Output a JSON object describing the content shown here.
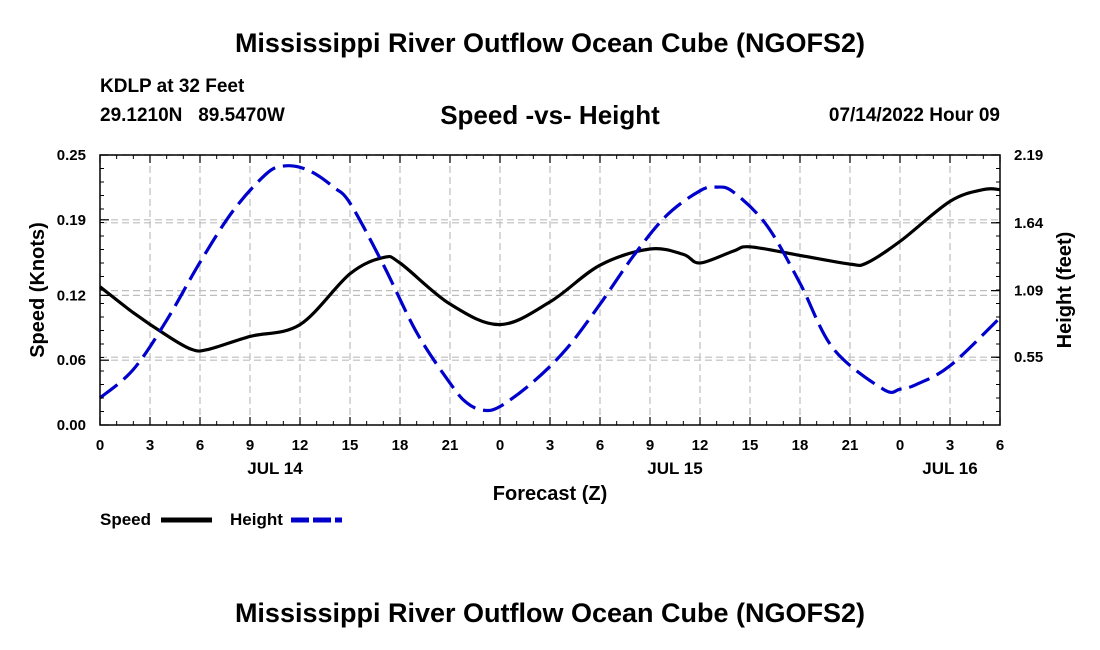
{
  "page": {
    "title": "Mississippi River Outflow Ocean Cube (NGOFS2)",
    "bottom_title": "Mississippi River Outflow Ocean Cube (NGOFS2)",
    "station": "KDLP at 32 Feet",
    "coords": "29.1210N   89.5470W",
    "datetime": "07/14/2022 Hour 09"
  },
  "legend": {
    "speed_label": "Speed",
    "height_label": "Height"
  },
  "colors": {
    "speed": "#000000",
    "height": "#0000cc",
    "grid": "#bdbdbd"
  },
  "chart_data": {
    "type": "line",
    "title": "Speed -vs- Height",
    "xlabel": "Forecast (Z)",
    "ylabel": "Speed (Knots)",
    "y2label": "Height (feet)",
    "xlim": [
      0,
      54
    ],
    "ylim": [
      0,
      0.25
    ],
    "y2lim": [
      0,
      2.19
    ],
    "x_ticks": [
      0,
      3,
      6,
      9,
      12,
      15,
      18,
      21,
      24,
      27,
      30,
      33,
      36,
      39,
      42,
      45,
      48,
      51,
      54
    ],
    "x_tick_labels": [
      "0",
      "3",
      "6",
      "9",
      "12",
      "15",
      "18",
      "21",
      "0",
      "3",
      "6",
      "9",
      "12",
      "15",
      "18",
      "21",
      "0",
      "3",
      "6"
    ],
    "date_labels": [
      {
        "x": 10.5,
        "label": "JUL 14"
      },
      {
        "x": 34.5,
        "label": "JUL 15"
      },
      {
        "x": 51,
        "label": "JUL 16"
      }
    ],
    "y_ticks": [
      0,
      0.06,
      0.12,
      0.19,
      0.25
    ],
    "y_tick_labels": [
      "0.00",
      "0.06",
      "0.12",
      "0.19",
      "0.25"
    ],
    "y2_ticks": [
      0.55,
      1.09,
      1.64,
      2.19
    ],
    "y2_tick_labels": [
      "0.55",
      "1.09",
      "1.64",
      "2.19"
    ],
    "series": [
      {
        "name": "Speed",
        "axis": "left",
        "style": "solid",
        "x": [
          0,
          2,
          4,
          5.5,
          6.5,
          9,
          12,
          15,
          17,
          18,
          21,
          24,
          27,
          30,
          33,
          35,
          36,
          38,
          39,
          42,
          45,
          46,
          48,
          51,
          53,
          54
        ],
        "y": [
          0.128,
          0.104,
          0.083,
          0.07,
          0.07,
          0.082,
          0.093,
          0.14,
          0.155,
          0.15,
          0.112,
          0.093,
          0.114,
          0.148,
          0.163,
          0.158,
          0.15,
          0.161,
          0.165,
          0.157,
          0.149,
          0.15,
          0.17,
          0.207,
          0.218,
          0.218
        ]
      },
      {
        "name": "Height",
        "axis": "right",
        "style": "dashed",
        "x": [
          0,
          2,
          4,
          6,
          8,
          10,
          11,
          12,
          13,
          14,
          15,
          17,
          19,
          21,
          22,
          23,
          24,
          26,
          28,
          30,
          32,
          34,
          36,
          37,
          38,
          40,
          42,
          44,
          47,
          48,
          49,
          51,
          54
        ],
        "y": [
          0.22,
          0.45,
          0.85,
          1.32,
          1.74,
          2.04,
          2.1,
          2.09,
          2.03,
          1.93,
          1.8,
          1.3,
          0.75,
          0.34,
          0.18,
          0.12,
          0.15,
          0.35,
          0.62,
          0.98,
          1.37,
          1.7,
          1.9,
          1.93,
          1.89,
          1.62,
          1.15,
          0.62,
          0.29,
          0.29,
          0.33,
          0.48,
          0.87
        ]
      }
    ]
  }
}
